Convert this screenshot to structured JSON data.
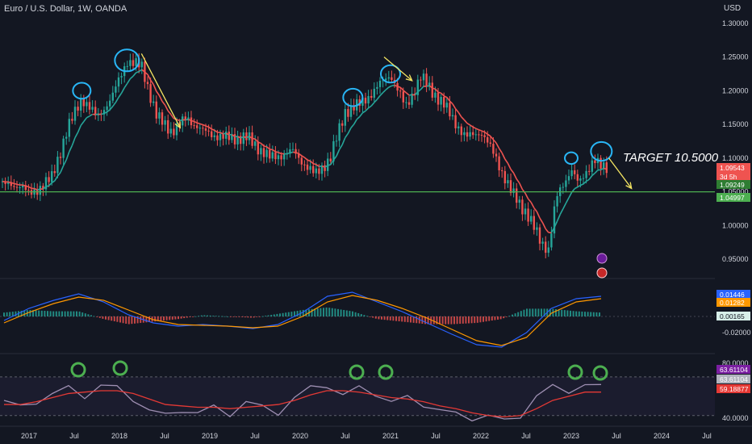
{
  "header": {
    "symbol": "Euro / U.S. Dollar, 1W, OANDA",
    "currency": "USD"
  },
  "annotation": {
    "target_text": "TARGET 10.5000"
  },
  "colors": {
    "background": "#131722",
    "up": "#26a69a",
    "down": "#ef5350",
    "support": "#4caf50",
    "arrow": "#f5e663",
    "circle": "#29b6f6",
    "rsi_circle": "#4caf50",
    "macd": "#2962ff",
    "signal": "#ff9800",
    "rsi": "#9e8fb2",
    "rsi_ma": "#e53935"
  },
  "chart_data": [
    {
      "type": "candlestick",
      "title": "Euro / U.S. Dollar, 1W, OANDA",
      "x_ticks": [
        "2017",
        "Jul",
        "2018",
        "Jul",
        "2019",
        "Jul",
        "2020",
        "Jul",
        "2021",
        "Jul",
        "2022",
        "Jul",
        "2023",
        "Jul",
        "2024",
        "Jul"
      ],
      "y_ticks": [
        "1.30000",
        "1.25000",
        "1.20000",
        "1.15000",
        "1.10000",
        "1.05000",
        "1.00000",
        "0.95000"
      ],
      "ylim": [
        0.925,
        1.325
      ],
      "key_points": [
        {
          "x": "2016-12",
          "y": 1.06
        },
        {
          "x": "2017-01",
          "y": 1.045
        },
        {
          "x": "2017-04",
          "y": 1.07
        },
        {
          "x": "2017-06",
          "y": 1.14
        },
        {
          "x": "2017-08",
          "y": 1.19
        },
        {
          "x": "2017-10",
          "y": 1.16
        },
        {
          "x": "2017-12",
          "y": 1.19
        },
        {
          "x": "2018-02",
          "y": 1.245
        },
        {
          "x": "2018-04",
          "y": 1.235
        },
        {
          "x": "2018-06",
          "y": 1.16
        },
        {
          "x": "2018-08",
          "y": 1.14
        },
        {
          "x": "2018-10",
          "y": 1.16
        },
        {
          "x": "2018-12",
          "y": 1.14
        },
        {
          "x": "2019-03",
          "y": 1.13
        },
        {
          "x": "2019-06",
          "y": 1.13
        },
        {
          "x": "2019-09",
          "y": 1.1
        },
        {
          "x": "2019-12",
          "y": 1.11
        },
        {
          "x": "2020-03",
          "y": 1.075
        },
        {
          "x": "2020-05",
          "y": 1.1
        },
        {
          "x": "2020-07",
          "y": 1.17
        },
        {
          "x": "2020-09",
          "y": 1.18
        },
        {
          "x": "2021-01",
          "y": 1.225
        },
        {
          "x": "2021-03",
          "y": 1.175
        },
        {
          "x": "2021-05",
          "y": 1.22
        },
        {
          "x": "2021-08",
          "y": 1.18
        },
        {
          "x": "2021-11",
          "y": 1.13
        },
        {
          "x": "2022-01",
          "y": 1.14
        },
        {
          "x": "2022-03",
          "y": 1.1
        },
        {
          "x": "2022-05",
          "y": 1.05
        },
        {
          "x": "2022-07",
          "y": 1.02
        },
        {
          "x": "2022-09",
          "y": 0.975
        },
        {
          "x": "2022-10",
          "y": 0.965
        },
        {
          "x": "2022-11",
          "y": 1.04
        },
        {
          "x": "2023-01",
          "y": 1.085
        },
        {
          "x": "2023-02",
          "y": 1.06
        },
        {
          "x": "2023-04",
          "y": 1.1
        },
        {
          "x": "2023-05",
          "y": 1.085
        }
      ],
      "support_level": 1.04997,
      "price_labels": [
        {
          "text": "1.09543",
          "color": "#ef5350"
        },
        {
          "text": "3d 5h",
          "color": "#ef5350"
        },
        {
          "text": "1.09249",
          "color": "#2e7d32"
        },
        {
          "text": "1.04997",
          "color": "#4caf50"
        }
      ]
    },
    {
      "type": "line",
      "title": "MACD",
      "y_ticks": [
        "-0.02000"
      ],
      "series": [
        {
          "values": [
            -0.005,
            0.01,
            0.02,
            0.028,
            0.018,
            0.002,
            -0.008,
            -0.012,
            -0.01,
            -0.012,
            -0.015,
            -0.01,
            0.005,
            0.025,
            0.03,
            0.018,
            0.006,
            -0.008,
            -0.022,
            -0.035,
            -0.038,
            -0.02,
            0.01,
            0.022,
            0.025
          ]
        },
        {
          "values": [
            -0.008,
            0.005,
            0.016,
            0.024,
            0.02,
            0.008,
            -0.004,
            -0.01,
            -0.011,
            -0.012,
            -0.014,
            -0.012,
            0.0,
            0.018,
            0.026,
            0.02,
            0.01,
            -0.002,
            -0.016,
            -0.03,
            -0.036,
            -0.026,
            0.004,
            0.018,
            0.022
          ]
        }
      ],
      "value_labels": [
        {
          "text": "0.01446",
          "color": "#2962ff"
        },
        {
          "text": "0.01282",
          "color": "#ff9800"
        },
        {
          "text": "0.00165",
          "color": "#26a69a"
        }
      ]
    },
    {
      "type": "line",
      "title": "RSI",
      "y_ticks": [
        "80.0000",
        "40.0000"
      ],
      "ylim": [
        36,
        84
      ],
      "series": [
        {
          "values": [
            53,
            48,
            52,
            58,
            62,
            56,
            64,
            62,
            54,
            46,
            42,
            46,
            44,
            48,
            43,
            52,
            48,
            44,
            55,
            62,
            64,
            57,
            62,
            58,
            52,
            55,
            50,
            46,
            43,
            40,
            42,
            38,
            42,
            56,
            63,
            60,
            64,
            63
          ]
        },
        {
          "values": [
            50,
            50,
            52,
            55,
            58,
            59,
            60,
            60,
            58,
            54,
            50,
            49,
            48,
            48,
            47,
            48,
            49,
            50,
            53,
            57,
            60,
            60,
            59,
            57,
            55,
            54,
            52,
            49,
            47,
            44,
            42,
            41,
            42,
            47,
            53,
            56,
            59,
            59
          ]
        }
      ],
      "value_labels": [
        {
          "text": "63.61104",
          "color": "#7b1fa2"
        },
        {
          "text": "63.61104",
          "color": "#b0b3bd"
        },
        {
          "text": "59.18877",
          "color": "#e53935"
        }
      ]
    }
  ]
}
